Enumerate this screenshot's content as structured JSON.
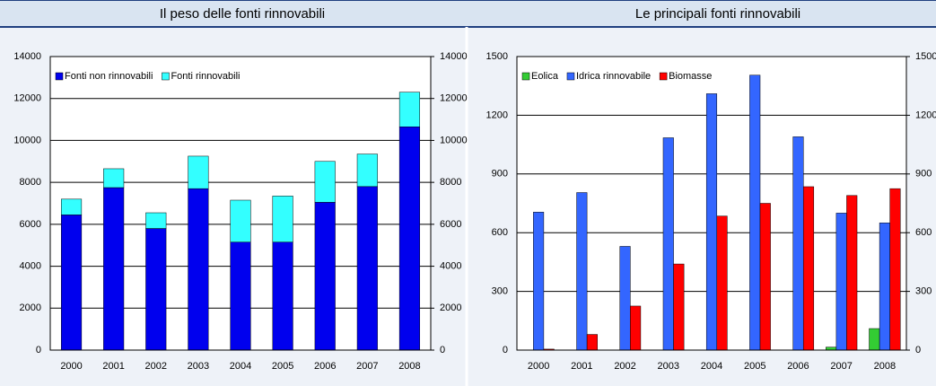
{
  "chart_data": [
    {
      "type": "bar",
      "stacked": true,
      "title": "Il peso delle fonti rinnovabili",
      "categories": [
        "2000",
        "2001",
        "2002",
        "2003",
        "2004",
        "2005",
        "2006",
        "2007",
        "2008"
      ],
      "series": [
        {
          "name": "Fonti non rinnovabili",
          "color": "#0000ee",
          "values": [
            6450,
            7750,
            5800,
            7700,
            5150,
            5150,
            7050,
            7800,
            10650
          ]
        },
        {
          "name": "Fonti rinnovabili",
          "color": "#33ffff",
          "values": [
            750,
            900,
            750,
            1550,
            2000,
            2200,
            1950,
            1550,
            1650
          ]
        }
      ],
      "ylim": [
        0,
        14000
      ],
      "yticks": [
        0,
        2000,
        4000,
        6000,
        8000,
        10000,
        12000,
        14000
      ],
      "y2lim": [
        0,
        14000
      ],
      "y2ticks": [
        0,
        2000,
        4000,
        6000,
        8000,
        10000,
        12000,
        14000
      ],
      "grid": true,
      "legend": "top-left"
    },
    {
      "type": "bar",
      "stacked": false,
      "title": "Le principali fonti rinnovabili",
      "categories": [
        "2000",
        "2001",
        "2002",
        "2003",
        "2004",
        "2005",
        "2006",
        "2007",
        "2008"
      ],
      "series": [
        {
          "name": "Eolica",
          "color": "#33cc33",
          "values": [
            0,
            0,
            0,
            0,
            0,
            0,
            0,
            15,
            110
          ]
        },
        {
          "name": "Idrica rinnovabile",
          "color": "#3366ff",
          "values": [
            705,
            805,
            530,
            1085,
            1310,
            1405,
            1090,
            700,
            650
          ]
        },
        {
          "name": "Biomasse",
          "color": "#ff0000",
          "values": [
            5,
            80,
            225,
            440,
            685,
            750,
            835,
            790,
            825
          ]
        }
      ],
      "ylim": [
        0,
        1500
      ],
      "yticks": [
        0,
        300,
        600,
        900,
        1200,
        1500
      ],
      "y2lim": [
        0,
        1500
      ],
      "y2ticks": [
        0,
        300,
        600,
        900,
        1200,
        1500
      ],
      "grid": true,
      "legend": "top-left"
    }
  ]
}
